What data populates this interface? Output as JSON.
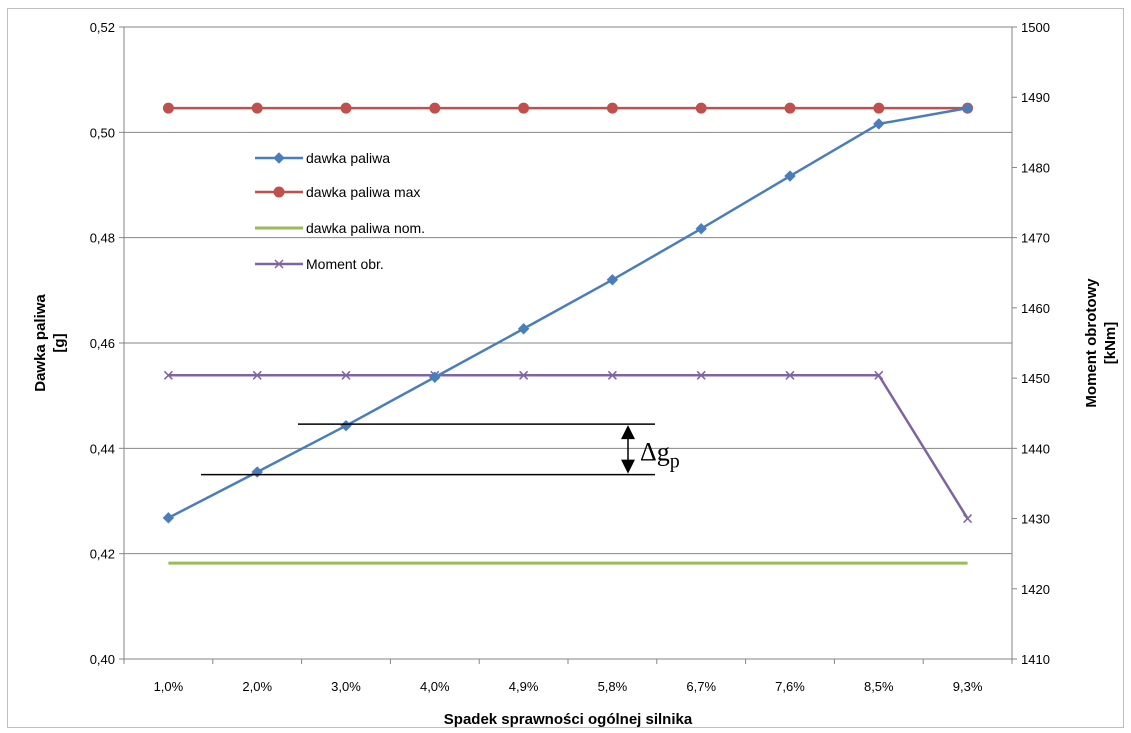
{
  "chart_data": {
    "type": "line",
    "categories": [
      "1,0%",
      "2,0%",
      "3,0%",
      "4,0%",
      "4,9%",
      "5,8%",
      "6,7%",
      "7,6%",
      "8,5%",
      "9,3%"
    ],
    "xlabel": "Spadek sprawności ogólnej silnika",
    "ylabel_left": [
      "Dawka paliwa",
      "[g]"
    ],
    "ylabel_right": [
      "Moment obrotowy",
      "[kNm]"
    ],
    "y_left": {
      "min": 0.4,
      "max": 0.52,
      "ticks": [
        0.4,
        0.42,
        0.44,
        0.46,
        0.48,
        0.5,
        0.52
      ],
      "tick_labels": [
        "0,40",
        "0,42",
        "0,44",
        "0,46",
        "0,48",
        "0,50",
        "0,52"
      ]
    },
    "y_right": {
      "min": 1410,
      "max": 1500,
      "ticks": [
        1410,
        1420,
        1430,
        1440,
        1450,
        1460,
        1470,
        1480,
        1490,
        1500
      ],
      "tick_labels": [
        "1410",
        "1420",
        "1430",
        "1440",
        "1450",
        "1460",
        "1470",
        "1480",
        "1490",
        "1500"
      ]
    },
    "grid": true,
    "legend_position": "upper-left inside plot",
    "series": [
      {
        "name": "dawka paliwa",
        "axis": "left",
        "color": "#4a7ebb",
        "marker": "diamond",
        "values": [
          0.4268,
          0.4355,
          0.4443,
          0.4535,
          0.4627,
          0.472,
          0.4817,
          0.4917,
          0.5016,
          0.5046
        ]
      },
      {
        "name": "dawka paliwa max",
        "axis": "left",
        "color": "#c0504d",
        "marker": "circle",
        "values": [
          0.5046,
          0.5046,
          0.5046,
          0.5046,
          0.5046,
          0.5046,
          0.5046,
          0.5046,
          0.5046,
          0.5046
        ]
      },
      {
        "name": "dawka paliwa nom.",
        "axis": "left",
        "color": "#9bbb59",
        "marker": "none",
        "extend_to_edges": true,
        "values": [
          0.4182,
          0.4182,
          0.4182,
          0.4182,
          0.4182,
          0.4182,
          0.4182,
          0.4182,
          0.4182,
          0.4182
        ]
      },
      {
        "name": "Moment obr.",
        "axis": "right",
        "color": "#8064a2",
        "marker": "x",
        "values": [
          1450.4,
          1450.4,
          1450.4,
          1450.4,
          1450.4,
          1450.4,
          1450.4,
          1450.4,
          1450.4,
          1430.0
        ]
      }
    ],
    "annotations": [
      {
        "type": "delta-bracket",
        "label": "Δg",
        "subscript": "p",
        "upper_value": 0.4446,
        "lower_value": 0.435
      }
    ]
  }
}
